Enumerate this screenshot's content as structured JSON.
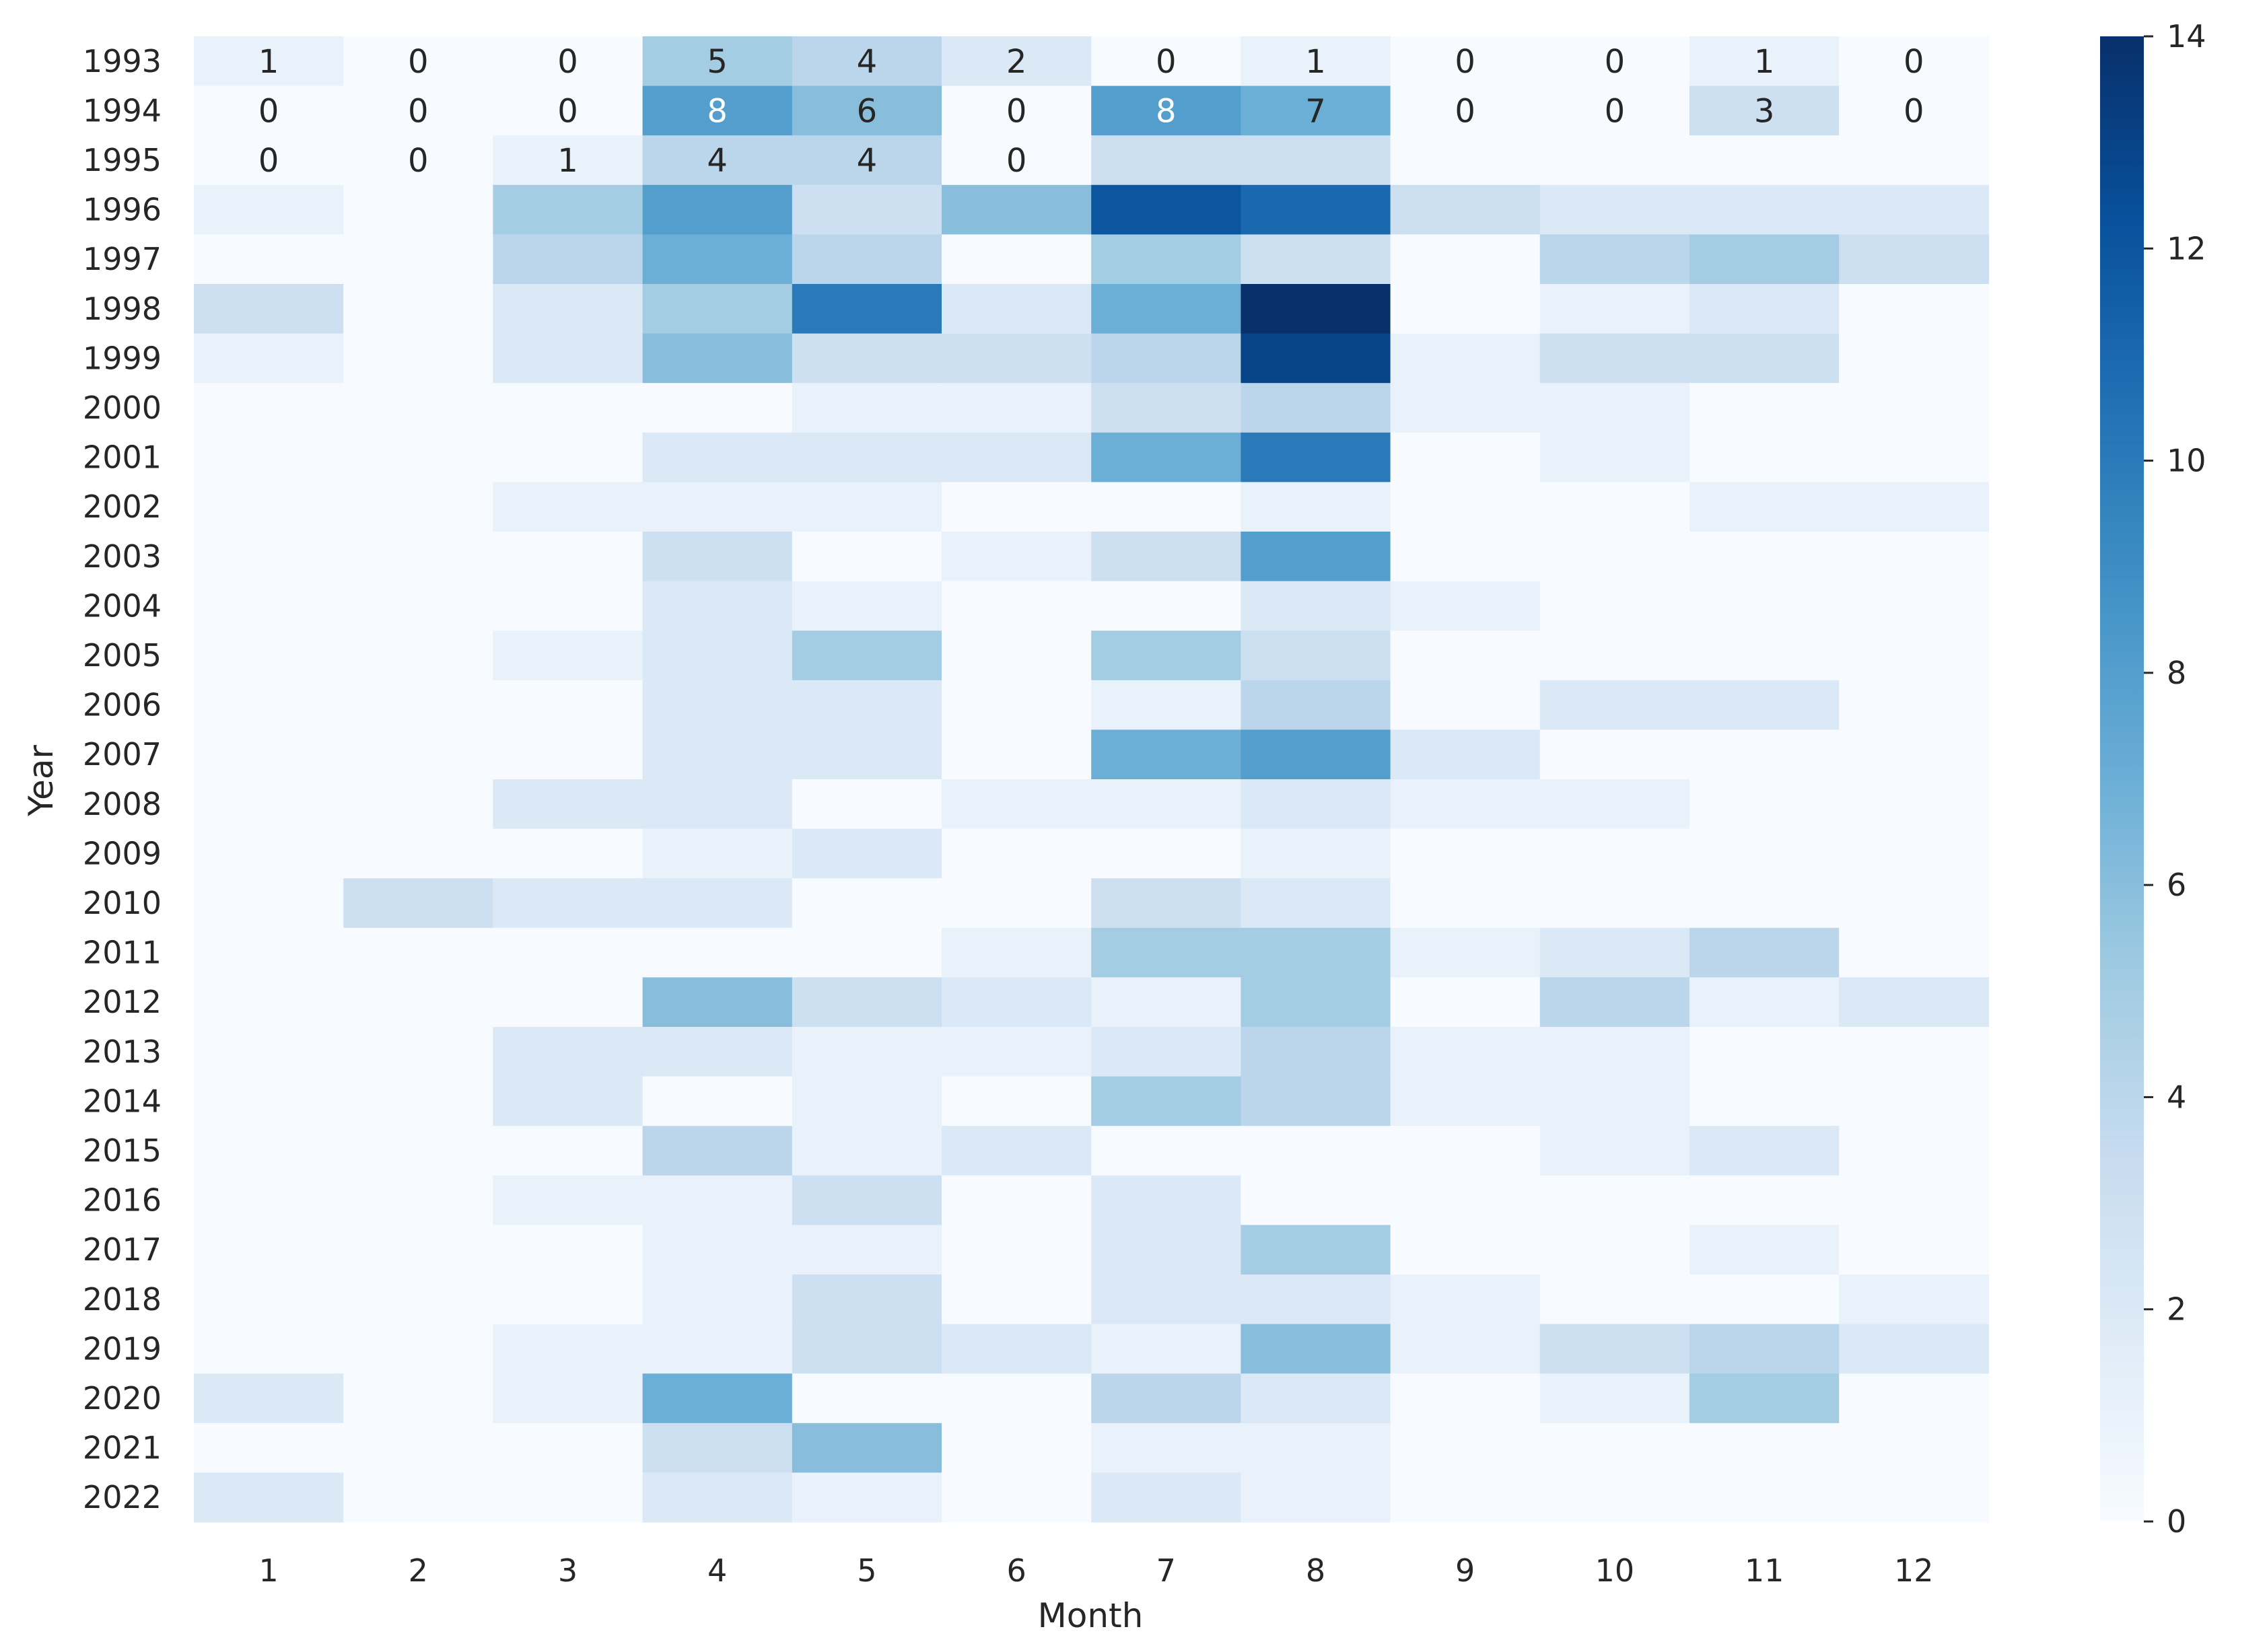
{
  "chart_data": {
    "type": "heatmap",
    "title": "",
    "xlabel": "Month",
    "ylabel": "Year",
    "colormap": "Blues",
    "colormap_stops": [
      "#f7fbff",
      "#deebf7",
      "#c6dbef",
      "#9ecae1",
      "#6baed6",
      "#4292c6",
      "#2171b5",
      "#08519c",
      "#08306b"
    ],
    "vmin": 0,
    "vmax": 14,
    "colorbar_ticks": [
      "0",
      "2",
      "4",
      "6",
      "8",
      "10",
      "12",
      "14"
    ],
    "x_categories": [
      "1",
      "2",
      "3",
      "4",
      "5",
      "6",
      "7",
      "8",
      "9",
      "10",
      "11",
      "12"
    ],
    "y_categories": [
      "1993",
      "1994",
      "1995",
      "1996",
      "1997",
      "1998",
      "1999",
      "2000",
      "2001",
      "2002",
      "2003",
      "2004",
      "2005",
      "2006",
      "2007",
      "2008",
      "2009",
      "2010",
      "2011",
      "2012",
      "2013",
      "2014",
      "2015",
      "2016",
      "2017",
      "2018",
      "2019",
      "2020",
      "2021",
      "2022"
    ],
    "values": [
      [
        1,
        0,
        0,
        5,
        4,
        2,
        0,
        1,
        0,
        0,
        1,
        0
      ],
      [
        0,
        0,
        0,
        8,
        6,
        0,
        8,
        7,
        0,
        0,
        3,
        0
      ],
      [
        0,
        0,
        1,
        4,
        4,
        0,
        3,
        3,
        0,
        0,
        0,
        0
      ],
      [
        1,
        0,
        5,
        8,
        3,
        6,
        12,
        11,
        3,
        2,
        2,
        2
      ],
      [
        0,
        0,
        4,
        7,
        4,
        0,
        5,
        3,
        0,
        4,
        5,
        3
      ],
      [
        3,
        0,
        2,
        5,
        10,
        2,
        7,
        14,
        0,
        1,
        2,
        0
      ],
      [
        1,
        0,
        2,
        6,
        3,
        3,
        4,
        13,
        1,
        3,
        3,
        0
      ],
      [
        0,
        0,
        0,
        0,
        1,
        1,
        3,
        4,
        1,
        1,
        0,
        0
      ],
      [
        0,
        0,
        0,
        2,
        2,
        2,
        7,
        10,
        0,
        1,
        0,
        0
      ],
      [
        0,
        0,
        1,
        1,
        1,
        0,
        0,
        1,
        0,
        0,
        1,
        1
      ],
      [
        0,
        0,
        0,
        3,
        0,
        1,
        3,
        8,
        0,
        0,
        0,
        0
      ],
      [
        0,
        0,
        0,
        2,
        1,
        0,
        0,
        2,
        1,
        0,
        0,
        0
      ],
      [
        0,
        0,
        1,
        2,
        5,
        0,
        5,
        3,
        0,
        0,
        0,
        0
      ],
      [
        0,
        0,
        0,
        2,
        2,
        0,
        1,
        4,
        0,
        2,
        2,
        0
      ],
      [
        0,
        0,
        0,
        2,
        2,
        0,
        7,
        8,
        2,
        0,
        0,
        0
      ],
      [
        0,
        0,
        2,
        2,
        0,
        1,
        1,
        2,
        1,
        1,
        0,
        0
      ],
      [
        0,
        0,
        0,
        1,
        2,
        0,
        0,
        1,
        0,
        0,
        0,
        0
      ],
      [
        0,
        3,
        2,
        2,
        0,
        0,
        3,
        2,
        0,
        0,
        0,
        0
      ],
      [
        0,
        0,
        0,
        0,
        0,
        1,
        5,
        5,
        1,
        2,
        4,
        0
      ],
      [
        0,
        0,
        0,
        6,
        3,
        2,
        1,
        5,
        0,
        4,
        1,
        2
      ],
      [
        0,
        0,
        2,
        2,
        1,
        1,
        2,
        4,
        1,
        1,
        0,
        0
      ],
      [
        0,
        0,
        2,
        0,
        1,
        0,
        5,
        4,
        1,
        1,
        0,
        0
      ],
      [
        0,
        0,
        0,
        4,
        1,
        2,
        0,
        0,
        0,
        1,
        2,
        0
      ],
      [
        0,
        0,
        1,
        1,
        3,
        0,
        2,
        0,
        0,
        0,
        0,
        0
      ],
      [
        0,
        0,
        0,
        1,
        1,
        0,
        2,
        5,
        0,
        0,
        1,
        0
      ],
      [
        0,
        0,
        0,
        1,
        3,
        0,
        2,
        2,
        1,
        0,
        0,
        1
      ],
      [
        0,
        0,
        1,
        1,
        3,
        2,
        1,
        6,
        1,
        3,
        4,
        2
      ],
      [
        2,
        0,
        1,
        7,
        0,
        0,
        4,
        2,
        0,
        1,
        5,
        0
      ],
      [
        0,
        0,
        0,
        3,
        6,
        0,
        1,
        1,
        0,
        0,
        0,
        0
      ],
      [
        2,
        0,
        0,
        2,
        1,
        0,
        2,
        1,
        0,
        0,
        0,
        0
      ]
    ],
    "annotations": [
      [
        "1",
        "0",
        "0",
        "5",
        "4",
        "2",
        "0",
        "1",
        "0",
        "0",
        "1",
        "0"
      ],
      [
        "0",
        "0",
        "0",
        "8",
        "6",
        "0",
        "8",
        "7",
        "0",
        "0",
        "3",
        "0"
      ],
      [
        "0",
        "0",
        "1",
        "4",
        "4",
        "0",
        "",
        "",
        "",
        "",
        "",
        ""
      ]
    ]
  }
}
